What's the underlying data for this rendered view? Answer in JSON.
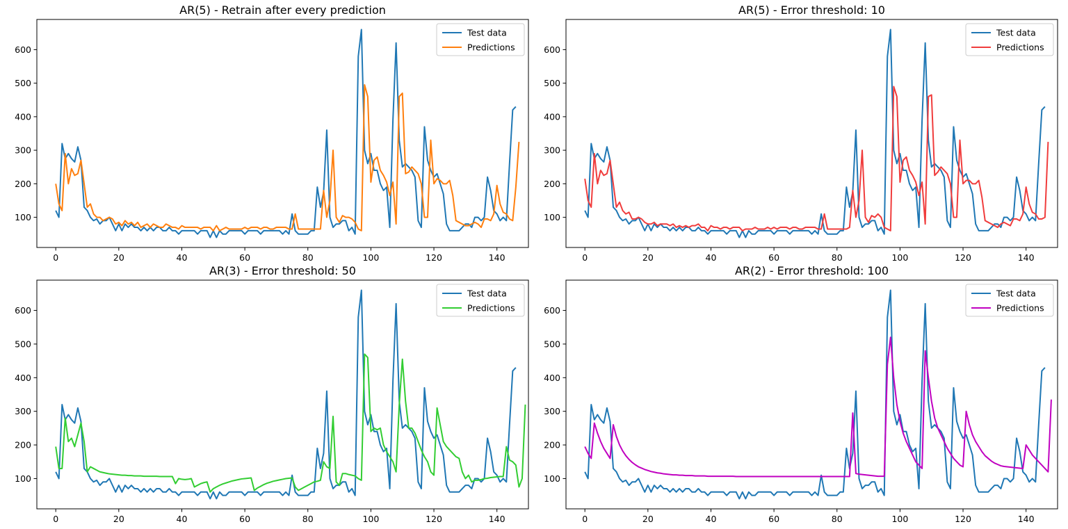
{
  "legend_labels": {
    "test": "Test data",
    "pred": "Predictions"
  },
  "test_series": [
    120,
    100,
    320,
    275,
    290,
    275,
    265,
    310,
    270,
    130,
    120,
    100,
    90,
    95,
    80,
    90,
    90,
    100,
    80,
    60,
    80,
    60,
    80,
    70,
    80,
    70,
    70,
    60,
    70,
    60,
    70,
    60,
    70,
    70,
    60,
    60,
    70,
    60,
    60,
    50,
    60,
    60,
    60,
    60,
    60,
    50,
    60,
    60,
    60,
    40,
    60,
    40,
    60,
    50,
    50,
    60,
    60,
    60,
    60,
    60,
    50,
    60,
    60,
    60,
    60,
    50,
    60,
    60,
    60,
    60,
    60,
    60,
    50,
    60,
    50,
    110,
    60,
    50,
    50,
    50,
    50,
    60,
    60,
    190,
    130,
    175,
    360,
    100,
    70,
    80,
    80,
    90,
    90,
    60,
    70,
    50,
    580,
    660,
    300,
    260,
    290,
    240,
    240,
    200,
    180,
    190,
    70,
    390,
    620,
    330,
    250,
    260,
    250,
    240,
    220,
    90,
    70,
    370,
    270,
    240,
    220,
    230,
    200,
    170,
    80,
    60,
    60,
    60,
    60,
    70,
    80,
    80,
    70,
    100,
    100,
    90,
    100,
    220,
    180,
    120,
    110,
    90,
    100,
    90,
    260,
    420,
    430
  ],
  "chart_data": [
    {
      "type": "line",
      "title": "AR(5) - Retrain after every prediction",
      "xlabel": "",
      "ylabel": "",
      "xlim": [
        -6,
        150
      ],
      "ylim": [
        10,
        690
      ],
      "xticks": [
        0,
        20,
        40,
        60,
        80,
        100,
        120,
        140
      ],
      "yticks": [
        100,
        200,
        300,
        400,
        500,
        600
      ],
      "grid": false,
      "legend": "top-right",
      "series": [
        {
          "name": "Test data",
          "color": "#1f77b4",
          "ref": "test_series"
        },
        {
          "name": "Predictions",
          "color": "#ff7f0e",
          "values": [
            200,
            140,
            120,
            290,
            200,
            245,
            225,
            230,
            270,
            200,
            130,
            140,
            110,
            100,
            100,
            90,
            95,
            100,
            95,
            80,
            85,
            75,
            90,
            80,
            85,
            75,
            85,
            70,
            75,
            80,
            70,
            80,
            75,
            70,
            70,
            80,
            75,
            70,
            70,
            65,
            75,
            70,
            70,
            70,
            70,
            70,
            65,
            70,
            70,
            70,
            60,
            75,
            60,
            65,
            70,
            65,
            65,
            65,
            65,
            65,
            70,
            65,
            70,
            70,
            70,
            65,
            70,
            70,
            65,
            65,
            70,
            70,
            70,
            70,
            65,
            65,
            110,
            65,
            65,
            65,
            65,
            65,
            65,
            65,
            65,
            180,
            100,
            150,
            300,
            100,
            85,
            105,
            100,
            100,
            95,
            85,
            65,
            60,
            495,
            460,
            205,
            270,
            280,
            240,
            225,
            205,
            165,
            205,
            80,
            460,
            470,
            230,
            235,
            250,
            240,
            230,
            200,
            100,
            100,
            330,
            200,
            215,
            210,
            200,
            200,
            210,
            165,
            90,
            85,
            80,
            75,
            75,
            80,
            85,
            80,
            70,
            95,
            95,
            90,
            110,
            195,
            140,
            115,
            110,
            95,
            90,
            190,
            325
          ]
        }
      ]
    },
    {
      "type": "line",
      "title": "AR(5) - Error threshold: 10",
      "xlabel": "",
      "ylabel": "",
      "xlim": [
        -6,
        150
      ],
      "ylim": [
        10,
        690
      ],
      "xticks": [
        0,
        20,
        40,
        60,
        80,
        100,
        120,
        140
      ],
      "yticks": [
        100,
        200,
        300,
        400,
        500,
        600
      ],
      "grid": false,
      "legend": "top-right",
      "series": [
        {
          "name": "Test data",
          "color": "#1f77b4",
          "ref": "test_series"
        },
        {
          "name": "Predictions",
          "color": "#f03c3c",
          "values": [
            215,
            150,
            130,
            290,
            200,
            240,
            225,
            230,
            270,
            200,
            130,
            145,
            120,
            110,
            115,
            95,
            95,
            100,
            95,
            85,
            80,
            80,
            85,
            75,
            80,
            80,
            80,
            75,
            80,
            70,
            75,
            70,
            75,
            70,
            75,
            75,
            80,
            70,
            70,
            60,
            75,
            70,
            70,
            65,
            70,
            70,
            65,
            70,
            70,
            70,
            60,
            65,
            65,
            65,
            70,
            65,
            65,
            65,
            70,
            65,
            70,
            65,
            70,
            70,
            70,
            65,
            70,
            70,
            65,
            65,
            70,
            70,
            70,
            70,
            65,
            65,
            110,
            65,
            65,
            65,
            65,
            65,
            65,
            65,
            70,
            180,
            100,
            150,
            300,
            100,
            85,
            105,
            100,
            110,
            100,
            70,
            65,
            60,
            490,
            460,
            205,
            270,
            280,
            240,
            225,
            205,
            165,
            205,
            80,
            460,
            465,
            225,
            235,
            250,
            240,
            230,
            200,
            100,
            100,
            330,
            200,
            210,
            210,
            200,
            200,
            210,
            160,
            90,
            85,
            80,
            75,
            70,
            80,
            85,
            80,
            75,
            95,
            95,
            90,
            110,
            190,
            140,
            115,
            110,
            95,
            95,
            100,
            325
          ]
        }
      ]
    },
    {
      "type": "line",
      "title": "AR(3) - Error threshold: 50",
      "xlabel": "",
      "ylabel": "",
      "xlim": [
        -6,
        150
      ],
      "ylim": [
        10,
        690
      ],
      "xticks": [
        0,
        20,
        40,
        60,
        80,
        100,
        120,
        140
      ],
      "yticks": [
        100,
        200,
        300,
        400,
        500,
        600
      ],
      "grid": false,
      "legend": "top-right",
      "series": [
        {
          "name": "Test data",
          "color": "#1f77b4",
          "ref": "test_series"
        },
        {
          "name": "Predictions",
          "color": "#32cd32",
          "values": [
            195,
            130,
            130,
            280,
            210,
            220,
            195,
            230,
            265,
            210,
            120,
            135,
            130,
            125,
            120,
            118,
            116,
            114,
            113,
            112,
            111,
            110,
            110,
            109,
            109,
            108,
            108,
            108,
            107,
            107,
            107,
            107,
            107,
            106,
            106,
            106,
            106,
            106,
            85,
            100,
            98,
            97,
            98,
            100,
            75,
            80,
            85,
            88,
            90,
            60,
            70,
            75,
            80,
            84,
            87,
            90,
            93,
            95,
            97,
            99,
            100,
            101,
            102,
            65,
            72,
            77,
            82,
            86,
            89,
            92,
            94,
            96,
            98,
            100,
            101,
            102,
            75,
            65,
            70,
            75,
            80,
            85,
            90,
            92,
            95,
            150,
            135,
            130,
            285,
            90,
            80,
            115,
            115,
            112,
            110,
            108,
            100,
            95,
            470,
            460,
            240,
            250,
            245,
            250,
            200,
            180,
            165,
            150,
            120,
            320,
            455,
            330,
            250,
            250,
            235,
            210,
            185,
            165,
            150,
            120,
            110,
            310,
            260,
            210,
            195,
            185,
            175,
            165,
            160,
            120,
            100,
            110,
            90,
            95,
            95,
            97,
            100,
            101,
            103,
            104,
            105,
            106,
            106,
            195,
            155,
            150,
            140,
            75,
            100,
            320
          ]
        }
      ]
    },
    {
      "type": "line",
      "title": "AR(2) - Error threshold: 100",
      "xlabel": "",
      "ylabel": "",
      "xlim": [
        -6,
        150
      ],
      "ylim": [
        10,
        690
      ],
      "xticks": [
        0,
        20,
        40,
        60,
        80,
        100,
        120,
        140
      ],
      "yticks": [
        100,
        200,
        300,
        400,
        500,
        600
      ],
      "grid": false,
      "legend": "top-right",
      "series": [
        {
          "name": "Test data",
          "color": "#1f77b4",
          "ref": "test_series"
        },
        {
          "name": "Predictions",
          "color": "#c000c0",
          "values": [
            195,
            175,
            160,
            265,
            235,
            210,
            190,
            175,
            160,
            260,
            225,
            200,
            182,
            168,
            157,
            148,
            141,
            135,
            131,
            127,
            124,
            121,
            119,
            117,
            116,
            114,
            113,
            112,
            111,
            111,
            110,
            110,
            109,
            109,
            109,
            108,
            108,
            108,
            108,
            107,
            107,
            107,
            107,
            107,
            107,
            107,
            107,
            107,
            106,
            106,
            106,
            106,
            106,
            106,
            106,
            106,
            106,
            106,
            106,
            106,
            106,
            106,
            106,
            106,
            106,
            106,
            106,
            106,
            106,
            106,
            106,
            106,
            106,
            106,
            106,
            106,
            106,
            106,
            106,
            106,
            106,
            106,
            106,
            106,
            106,
            295,
            115,
            113,
            112,
            111,
            110,
            109,
            108,
            107,
            107,
            107,
            440,
            520,
            400,
            320,
            270,
            235,
            210,
            190,
            170,
            150,
            140,
            130,
            480,
            400,
            330,
            280,
            250,
            230,
            210,
            190,
            175,
            160,
            150,
            140,
            135,
            300,
            260,
            230,
            210,
            195,
            180,
            168,
            160,
            152,
            146,
            142,
            138,
            136,
            135,
            134,
            133,
            132,
            131,
            130,
            200,
            185,
            170,
            160,
            150,
            140,
            130,
            120,
            335
          ]
        }
      ]
    }
  ]
}
